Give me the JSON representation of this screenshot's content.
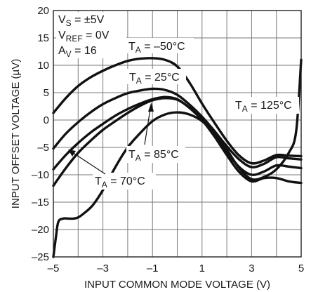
{
  "chart_data": {
    "type": "line",
    "title": "",
    "xlabel": "INPUT COMMON MODE VOLTAGE (V)",
    "ylabel": "INPUT OFFSET VOLTAGE (µV)",
    "xlim": [
      -5,
      5
    ],
    "ylim": [
      -25,
      20
    ],
    "xticks": [
      -5,
      -3,
      -1,
      1,
      3,
      5
    ],
    "yticks": [
      20,
      15,
      10,
      5,
      0,
      -5,
      -10,
      -15,
      -20,
      -25
    ],
    "xtick_labels": [
      "–5",
      "–3",
      "–1",
      "1",
      "3",
      "5"
    ],
    "ytick_labels": [
      "20",
      "15",
      "10",
      "5",
      "0",
      "–5",
      "–10",
      "–15",
      "–20",
      "–25"
    ],
    "grid": true,
    "conditions": {
      "line1": {
        "main": "V",
        "sub": "S",
        "rest": " = ±5V"
      },
      "line2": {
        "main": "V",
        "sub": "REF",
        "rest": " = 0V"
      },
      "line3": {
        "main": "A",
        "sub": "V",
        "rest": " = 16"
      }
    },
    "series": [
      {
        "name": "T_A = –50°C",
        "label": {
          "main": "T",
          "sub": "A",
          "rest": " = –50°C"
        },
        "x": [
          -5,
          -4.5,
          -4,
          -3.5,
          -3,
          -2.5,
          -2,
          -1.5,
          -1,
          -0.5,
          0,
          0.5,
          1,
          1.5,
          2,
          2.5,
          3,
          3.5,
          4,
          4.5,
          5
        ],
        "y": [
          1.3,
          4.0,
          6.2,
          7.8,
          9.0,
          10.0,
          10.8,
          11.2,
          11.3,
          11.0,
          9.8,
          6.8,
          3.0,
          -0.5,
          -3.8,
          -6.5,
          -7.9,
          -7.4,
          -6.4,
          -6.5,
          -6.6
        ]
      },
      {
        "name": "T_A = 25°C",
        "label": {
          "main": "T",
          "sub": "A",
          "rest": " = 25°C"
        },
        "x": [
          -5,
          -4.5,
          -4,
          -3.5,
          -3,
          -2.5,
          -2,
          -1.5,
          -1,
          -0.5,
          0,
          0.5,
          1,
          1.5,
          2,
          2.5,
          3,
          3.5,
          4,
          4.5,
          5
        ],
        "y": [
          -5.2,
          -2.5,
          -0.4,
          1.4,
          2.9,
          4.0,
          4.9,
          5.4,
          5.7,
          5.5,
          4.6,
          2.8,
          0.6,
          -2.0,
          -4.8,
          -7.2,
          -8.6,
          -8.0,
          -6.8,
          -7.0,
          -7.2
        ]
      },
      {
        "name": "T_A = 85°C",
        "label": {
          "main": "T",
          "sub": "A",
          "rest": " = 85°C"
        },
        "x": [
          -5,
          -4.5,
          -4,
          -3.5,
          -3,
          -2.5,
          -2,
          -1.5,
          -1,
          -0.5,
          0,
          0.5,
          1,
          1.5,
          2,
          2.5,
          3,
          3.5,
          4,
          4.5,
          5
        ],
        "y": [
          -9.0,
          -6.4,
          -4.2,
          -2.3,
          -0.7,
          0.8,
          2.0,
          3.0,
          3.8,
          4.2,
          3.8,
          2.2,
          0.0,
          -2.8,
          -5.8,
          -8.6,
          -10.0,
          -9.4,
          -8.3,
          -8.5,
          -8.8
        ]
      },
      {
        "name": "T_A = 70°C",
        "label": {
          "main": "T",
          "sub": "A",
          "rest": " = 70°C"
        },
        "x": [
          -5,
          -4.5,
          -4,
          -3.5,
          -3,
          -2.5,
          -2,
          -1.5,
          -1,
          -0.5,
          0,
          0.5,
          1,
          1.5,
          2,
          2.5,
          3,
          3.5,
          4,
          4.5,
          5
        ],
        "y": [
          -12.0,
          -8.8,
          -6.0,
          -3.8,
          -1.8,
          -0.2,
          1.3,
          2.6,
          3.6,
          4.0,
          3.7,
          2.2,
          0.0,
          -3.0,
          -6.4,
          -9.5,
          -11.2,
          -10.6,
          -10.6,
          -11.2,
          -11.5
        ]
      },
      {
        "name": "T_A = 125°C",
        "label": {
          "main": "T",
          "sub": "A",
          "rest": " = 125°C"
        },
        "x": [
          -5,
          -4.9,
          -4.8,
          -4.6,
          -4.4,
          -4.2,
          -4.0,
          -3.7,
          -3.4,
          -3.0,
          -2.5,
          -2.0,
          -1.5,
          -1.0,
          -0.5,
          0,
          0.5,
          1,
          1.5,
          2,
          2.5,
          3,
          3.5,
          4,
          4.5,
          4.8,
          5
        ],
        "y": [
          -25,
          -21.5,
          -18.6,
          -18.0,
          -18.0,
          -18.0,
          -17.8,
          -16.8,
          -15.5,
          -12.8,
          -8.6,
          -5.0,
          -2.4,
          -0.2,
          1.0,
          1.4,
          1.0,
          -0.2,
          -2.4,
          -5.4,
          -8.8,
          -10.8,
          -10.4,
          -9.0,
          -6.0,
          -2.0,
          11.0
        ]
      }
    ]
  }
}
